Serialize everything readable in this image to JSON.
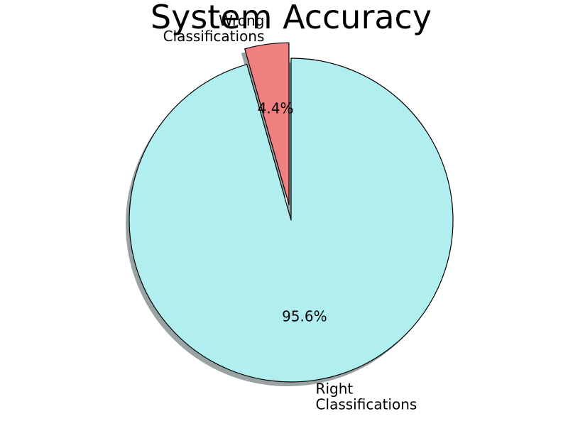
{
  "chart_data": {
    "type": "pie",
    "title": "System Accuracy",
    "slices": [
      {
        "label_lines": [
          "Right",
          "Classifications"
        ],
        "value": 95.6,
        "pct_text": "95.6%",
        "color": "#b0eeef",
        "explode": false
      },
      {
        "label_lines": [
          "Wrong",
          "Classifications"
        ],
        "value": 4.4,
        "pct_text": "4.4%",
        "color": "#f08080",
        "explode": true
      }
    ],
    "start_angle_deg": 90,
    "direction": "clockwise",
    "shadow": true,
    "edge_color": "#000000",
    "shadow_color": "#9aa3a3",
    "legend": "none"
  }
}
